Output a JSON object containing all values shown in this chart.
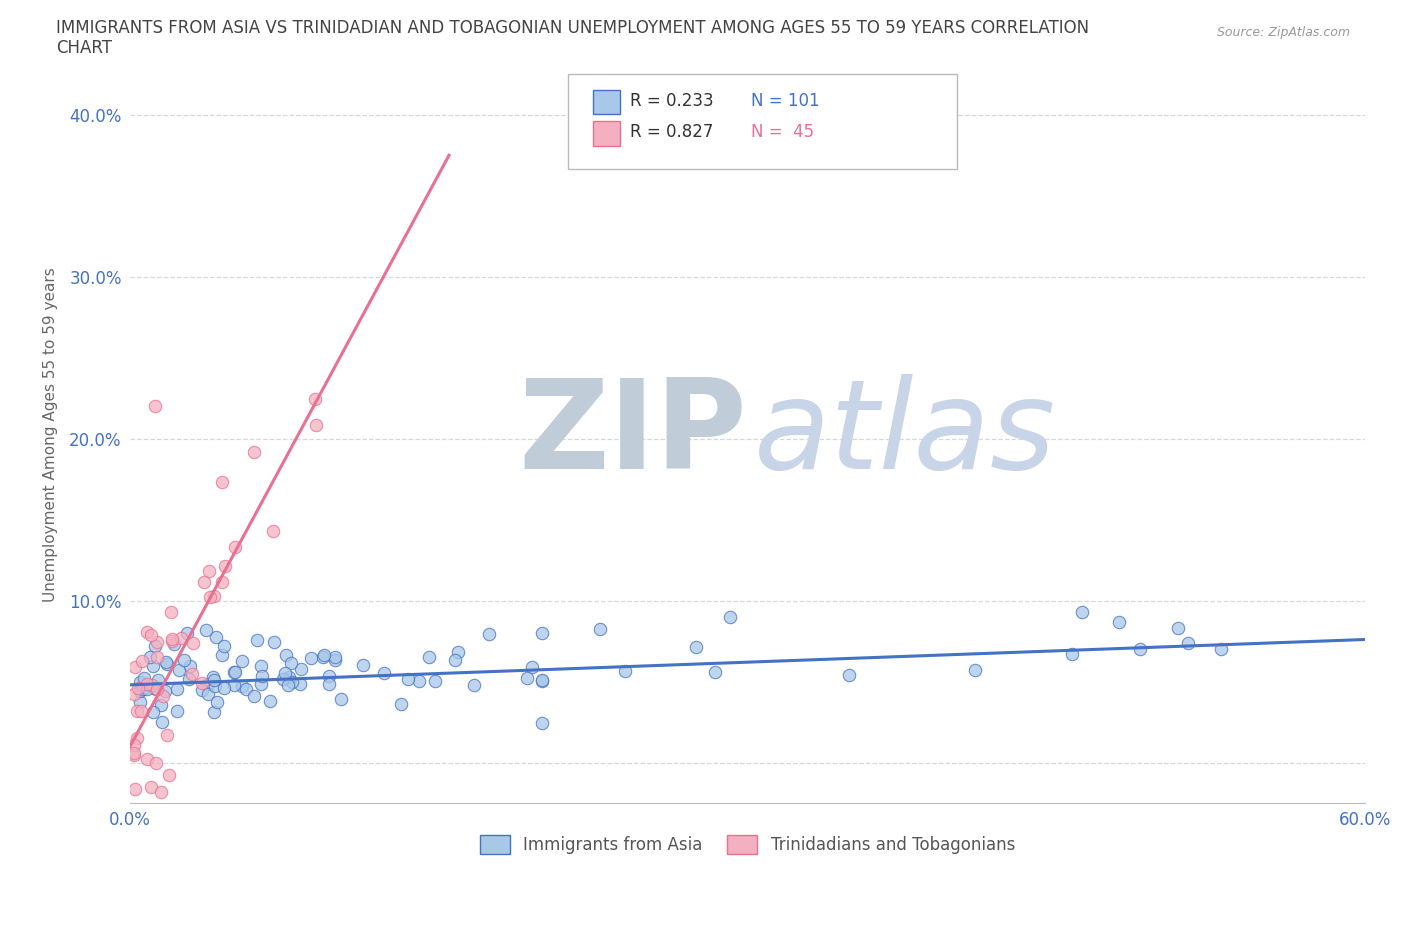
{
  "title_line1": "IMMIGRANTS FROM ASIA VS TRINIDADIAN AND TOBAGONIAN UNEMPLOYMENT AMONG AGES 55 TO 59 YEARS CORRELATION",
  "title_line2": "CHART",
  "source_text": "Source: ZipAtlas.com",
  "ylabel": "Unemployment Among Ages 55 to 59 years",
  "xlim": [
    0.0,
    0.6
  ],
  "ylim": [
    -0.025,
    0.43
  ],
  "color_asia": "#a8c8e8",
  "color_tt": "#f4b0c0",
  "color_asia_line": "#4472c4",
  "color_tt_line": "#e87090",
  "legend_label1": "Immigrants from Asia",
  "legend_label2": "Trinidadians and Tobagonians",
  "background_color": "#ffffff",
  "grid_color": "#d8d8d8",
  "title_color": "#444444",
  "axis_label_color": "#666666",
  "tick_color": "#4472c4",
  "watermark_zip_color": "#c0ccd8",
  "watermark_atlas_color": "#c8d4e8"
}
